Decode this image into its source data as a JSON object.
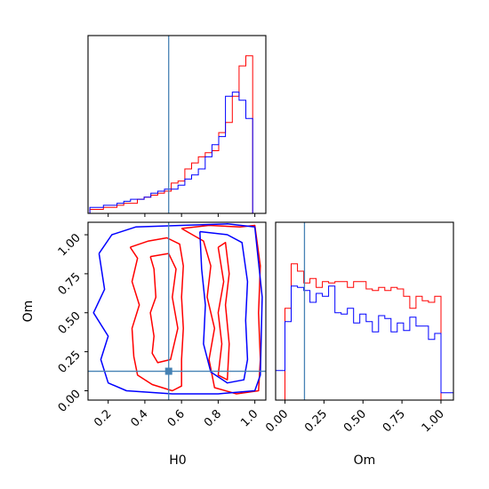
{
  "chart_data": {
    "type": "corner",
    "parameters": [
      "H0",
      "Om"
    ],
    "xlabels": {
      "H0": "H0",
      "Om": "Om"
    },
    "ylabels": {
      "Om": "Om"
    },
    "ranges": {
      "H0": [
        0.09,
        1.06
      ],
      "Om": [
        -0.06,
        1.08
      ]
    },
    "ticks": {
      "H0": [
        0.2,
        0.4,
        0.6,
        0.8,
        1.0
      ],
      "Om": [
        0.0,
        0.25,
        0.5,
        0.75,
        1.0
      ]
    },
    "tick_labels": {
      "H0": [
        "0.2",
        "0.4",
        "0.6",
        "0.8",
        "1.0"
      ],
      "Om": [
        "0.00",
        "0.25",
        "0.50",
        "0.75",
        "1.00"
      ]
    },
    "truth": {
      "H0": 0.53,
      "Om": 0.125,
      "color": "#4682b4"
    },
    "series_colors": [
      "#ff0000",
      "#0000ff"
    ],
    "hist_H0": {
      "edges": [
        0.1,
        0.137,
        0.174,
        0.211,
        0.248,
        0.285,
        0.322,
        0.359,
        0.396,
        0.433,
        0.47,
        0.507,
        0.544,
        0.581,
        0.618,
        0.655,
        0.692,
        0.729,
        0.766,
        0.803,
        0.84,
        0.877,
        0.914,
        0.951,
        0.988,
        1.025
      ],
      "ymax": 88,
      "series": [
        {
          "values": [
            2,
            2,
            3,
            3,
            4,
            5,
            5,
            7,
            8,
            9,
            10,
            11,
            15,
            16,
            22,
            25,
            28,
            30,
            31,
            40,
            45,
            58,
            73,
            78,
            0
          ]
        },
        {
          "values": [
            3,
            3,
            4,
            4,
            5,
            6,
            7,
            7,
            8,
            10,
            11,
            12,
            12,
            14,
            17,
            19,
            22,
            28,
            34,
            38,
            58,
            60,
            56,
            47,
            0
          ]
        }
      ]
    },
    "hist_Om": {
      "edges": [
        -0.06,
        0.0,
        0.04,
        0.08,
        0.12,
        0.16,
        0.2,
        0.24,
        0.28,
        0.32,
        0.36,
        0.4,
        0.44,
        0.48,
        0.52,
        0.56,
        0.6,
        0.64,
        0.68,
        0.72,
        0.76,
        0.8,
        0.84,
        0.88,
        0.92,
        0.96,
        1.0,
        1.08
      ],
      "ymax": 1.0,
      "series": [
        {
          "values": [
            0.0,
            0.62,
            0.92,
            0.87,
            0.79,
            0.82,
            0.76,
            0.8,
            0.79,
            0.8,
            0.8,
            0.76,
            0.8,
            0.8,
            0.75,
            0.74,
            0.76,
            0.74,
            0.76,
            0.75,
            0.7,
            0.62,
            0.7,
            0.67,
            0.66,
            0.7,
            0.0
          ]
        },
        {
          "values": [
            0.2,
            0.53,
            0.77,
            0.76,
            0.74,
            0.66,
            0.72,
            0.7,
            0.77,
            0.59,
            0.58,
            0.62,
            0.52,
            0.58,
            0.53,
            0.46,
            0.57,
            0.55,
            0.46,
            0.52,
            0.47,
            0.56,
            0.5,
            0.5,
            0.41,
            0.45,
            0.05
          ]
        }
      ]
    },
    "contours": [
      {
        "color": "#ff0000",
        "level": "inner",
        "points": [
          [
            0.43,
            0.86
          ],
          [
            0.45,
            0.78
          ],
          [
            0.46,
            0.6
          ],
          [
            0.43,
            0.5
          ],
          [
            0.45,
            0.35
          ],
          [
            0.44,
            0.24
          ],
          [
            0.47,
            0.18
          ],
          [
            0.54,
            0.2
          ],
          [
            0.58,
            0.4
          ],
          [
            0.55,
            0.6
          ],
          [
            0.57,
            0.78
          ],
          [
            0.53,
            0.88
          ],
          [
            0.43,
            0.86
          ]
        ]
      },
      {
        "color": "#ff0000",
        "level": "inner",
        "points": [
          [
            0.8,
            0.92
          ],
          [
            0.83,
            0.7
          ],
          [
            0.8,
            0.5
          ],
          [
            0.82,
            0.3
          ],
          [
            0.8,
            0.1
          ],
          [
            0.85,
            0.07
          ],
          [
            0.86,
            0.3
          ],
          [
            0.84,
            0.55
          ],
          [
            0.86,
            0.75
          ],
          [
            0.84,
            0.95
          ],
          [
            0.8,
            0.92
          ]
        ]
      },
      {
        "color": "#ff0000",
        "level": "outer",
        "points": [
          [
            0.32,
            0.92
          ],
          [
            0.36,
            0.85
          ],
          [
            0.33,
            0.7
          ],
          [
            0.37,
            0.55
          ],
          [
            0.33,
            0.4
          ],
          [
            0.34,
            0.22
          ],
          [
            0.36,
            0.1
          ],
          [
            0.44,
            0.04
          ],
          [
            0.55,
            0.0
          ],
          [
            0.6,
            0.03
          ],
          [
            0.6,
            0.2
          ],
          [
            0.61,
            0.4
          ],
          [
            0.6,
            0.6
          ],
          [
            0.61,
            0.8
          ],
          [
            0.59,
            0.94
          ],
          [
            0.52,
            0.98
          ],
          [
            0.42,
            0.96
          ],
          [
            0.32,
            0.92
          ]
        ]
      },
      {
        "color": "#ff0000",
        "level": "outer",
        "points": [
          [
            0.6,
            1.04
          ],
          [
            0.75,
            1.06
          ],
          [
            0.92,
            1.05
          ],
          [
            1.0,
            1.06
          ],
          [
            1.03,
            0.8
          ],
          [
            1.02,
            0.5
          ],
          [
            1.03,
            0.2
          ],
          [
            1.02,
            0.0
          ],
          [
            0.9,
            -0.02
          ],
          [
            0.78,
            0.02
          ],
          [
            0.75,
            0.2
          ],
          [
            0.78,
            0.4
          ],
          [
            0.74,
            0.6
          ],
          [
            0.76,
            0.8
          ],
          [
            0.72,
            0.96
          ],
          [
            0.6,
            1.04
          ]
        ]
      },
      {
        "color": "#0000ff",
        "level": "inner",
        "points": [
          [
            0.7,
            1.02
          ],
          [
            0.85,
            1.0
          ],
          [
            0.93,
            0.95
          ],
          [
            0.96,
            0.7
          ],
          [
            0.95,
            0.45
          ],
          [
            0.96,
            0.2
          ],
          [
            0.94,
            0.07
          ],
          [
            0.85,
            0.05
          ],
          [
            0.76,
            0.12
          ],
          [
            0.72,
            0.3
          ],
          [
            0.73,
            0.55
          ],
          [
            0.71,
            0.78
          ],
          [
            0.7,
            1.02
          ]
        ]
      },
      {
        "color": "#0000ff",
        "level": "outer",
        "points": [
          [
            0.15,
            0.88
          ],
          [
            0.22,
            1.0
          ],
          [
            0.35,
            1.05
          ],
          [
            0.6,
            1.06
          ],
          [
            0.85,
            1.07
          ],
          [
            1.0,
            1.05
          ],
          [
            1.04,
            0.6
          ],
          [
            1.03,
            0.1
          ],
          [
            1.0,
            0.0
          ],
          [
            0.8,
            -0.02
          ],
          [
            0.55,
            -0.02
          ],
          [
            0.3,
            0.0
          ],
          [
            0.2,
            0.05
          ],
          [
            0.16,
            0.2
          ],
          [
            0.2,
            0.35
          ],
          [
            0.12,
            0.5
          ],
          [
            0.18,
            0.65
          ],
          [
            0.15,
            0.88
          ]
        ]
      }
    ]
  }
}
